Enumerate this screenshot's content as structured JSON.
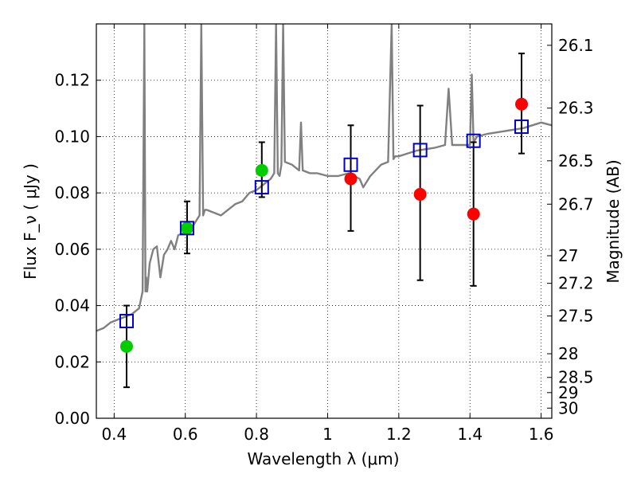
{
  "chart_data": {
    "type": "scatter",
    "title": "",
    "xlabel": "Wavelength  λ (μm)",
    "ylabel": "Flux  F_ν  ( μJy )",
    "ylabel_right": "Magnitude (AB)",
    "xlim": [
      0.35,
      1.63
    ],
    "ylim": [
      0.0,
      0.14
    ],
    "grid": true,
    "x_ticks": [
      0.4,
      0.6,
      0.8,
      1.0,
      1.2,
      1.4,
      1.6
    ],
    "x_tick_labels": [
      "0.4",
      "0.6",
      "0.8",
      "1",
      "1.2",
      "1.4",
      "1.6"
    ],
    "y_ticks": [
      0.0,
      0.02,
      0.04,
      0.06,
      0.08,
      0.1,
      0.12
    ],
    "y_tick_labels": [
      "0.00",
      "0.02",
      "0.04",
      "0.06",
      "0.08",
      "0.10",
      "0.12"
    ],
    "right_ticks": [
      {
        "label": "26.1",
        "flux": 0.1324
      },
      {
        "label": "26.3",
        "flux": 0.1101
      },
      {
        "label": "26.5",
        "flux": 0.0914
      },
      {
        "label": "26.7",
        "flux": 0.076
      },
      {
        "label": "27",
        "flux": 0.0577
      },
      {
        "label": "27.2",
        "flux": 0.0479
      },
      {
        "label": "27.5",
        "flux": 0.0363
      },
      {
        "label": "28",
        "flux": 0.0229
      },
      {
        "label": "28.5",
        "flux": 0.0145
      },
      {
        "label": "29",
        "flux": 0.0091
      },
      {
        "label": "30",
        "flux": 0.0036
      }
    ],
    "colors": {
      "model": "#808080",
      "green_points": "#00cc00",
      "red_points": "#ff0000",
      "squares": "#0000cc",
      "errorbars": "#000000"
    },
    "series": [
      {
        "kind": "model_spectrum",
        "x": [
          0.35,
          0.37,
          0.39,
          0.41,
          0.43,
          0.45,
          0.47,
          0.48,
          0.485,
          0.488,
          0.49,
          0.493,
          0.5,
          0.51,
          0.52,
          0.53,
          0.54,
          0.55,
          0.56,
          0.57,
          0.58,
          0.6,
          0.62,
          0.63,
          0.64,
          0.645,
          0.65,
          0.655,
          0.66,
          0.68,
          0.7,
          0.72,
          0.74,
          0.76,
          0.78,
          0.8,
          0.82,
          0.84,
          0.85,
          0.855,
          0.86,
          0.865,
          0.87,
          0.875,
          0.88,
          0.9,
          0.92,
          0.925,
          0.93,
          0.95,
          0.97,
          1.0,
          1.03,
          1.06,
          1.09,
          1.1,
          1.12,
          1.15,
          1.17,
          1.18,
          1.185,
          1.19,
          1.2,
          1.25,
          1.3,
          1.33,
          1.34,
          1.35,
          1.38,
          1.4,
          1.405,
          1.41,
          1.42,
          1.45,
          1.5,
          1.55,
          1.6,
          1.63
        ],
        "y": [
          0.031,
          0.032,
          0.034,
          0.035,
          0.036,
          0.037,
          0.039,
          0.045,
          0.14,
          0.045,
          0.05,
          0.045,
          0.055,
          0.06,
          0.061,
          0.05,
          0.058,
          0.06,
          0.063,
          0.06,
          0.065,
          0.066,
          0.068,
          0.07,
          0.072,
          0.14,
          0.072,
          0.074,
          0.074,
          0.073,
          0.072,
          0.074,
          0.076,
          0.077,
          0.08,
          0.081,
          0.083,
          0.085,
          0.087,
          0.14,
          0.087,
          0.086,
          0.09,
          0.14,
          0.091,
          0.09,
          0.088,
          0.105,
          0.088,
          0.087,
          0.087,
          0.086,
          0.086,
          0.087,
          0.085,
          0.082,
          0.086,
          0.09,
          0.091,
          0.14,
          0.092,
          0.093,
          0.093,
          0.095,
          0.096,
          0.097,
          0.117,
          0.097,
          0.097,
          0.097,
          0.122,
          0.098,
          0.1,
          0.101,
          0.102,
          0.103,
          0.105,
          0.104
        ]
      },
      {
        "kind": "measured_green",
        "points": [
          {
            "x": 0.435,
            "y": 0.0255,
            "err_low": 0.0145,
            "err_high": 0.0145
          },
          {
            "x": 0.605,
            "y": 0.0675,
            "err_low": 0.009,
            "err_high": 0.0095
          },
          {
            "x": 0.815,
            "y": 0.088,
            "err_low": 0.0095,
            "err_high": 0.01
          }
        ]
      },
      {
        "kind": "measured_red",
        "points": [
          {
            "x": 1.065,
            "y": 0.085,
            "err_low": 0.0185,
            "err_high": 0.019
          },
          {
            "x": 1.26,
            "y": 0.0795,
            "err_low": 0.0305,
            "err_high": 0.0315
          },
          {
            "x": 1.41,
            "y": 0.0725,
            "err_low": 0.0255,
            "err_high": 0.0255
          },
          {
            "x": 1.545,
            "y": 0.1115,
            "err_low": 0.0175,
            "err_high": 0.018
          }
        ]
      },
      {
        "kind": "model_bandpass",
        "points": [
          {
            "x": 0.435,
            "y": 0.0345
          },
          {
            "x": 0.605,
            "y": 0.0675
          },
          {
            "x": 0.815,
            "y": 0.082
          },
          {
            "x": 1.065,
            "y": 0.09
          },
          {
            "x": 1.26,
            "y": 0.0952
          },
          {
            "x": 1.41,
            "y": 0.0985
          },
          {
            "x": 1.545,
            "y": 0.1035
          }
        ]
      }
    ]
  }
}
